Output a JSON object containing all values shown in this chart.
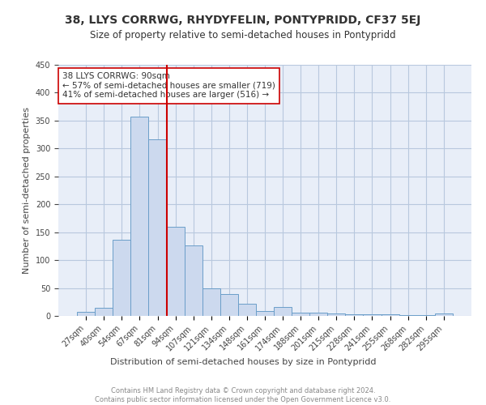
{
  "title": "38, LLYS CORRWG, RHYDYFELIN, PONTYPRIDD, CF37 5EJ",
  "subtitle": "Size of property relative to semi-detached houses in Pontypridd",
  "xlabel": "Distribution of semi-detached houses by size in Pontypridd",
  "ylabel": "Number of semi-detached properties",
  "footer_line1": "Contains HM Land Registry data © Crown copyright and database right 2024.",
  "footer_line2": "Contains public sector information licensed under the Open Government Licence v3.0.",
  "annotation_title": "38 LLYS CORRWG: 90sqm",
  "annotation_line1": "← 57% of semi-detached houses are smaller (719)",
  "annotation_line2": "41% of semi-detached houses are larger (516) →",
  "bar_color": "#ccd9ee",
  "bar_edge_color": "#6b9ec9",
  "vline_color": "#cc0000",
  "annotation_box_edge_color": "#cc0000",
  "background_color": "#ffffff",
  "plot_bg_color": "#e8eef8",
  "grid_color": "#b8c8de",
  "categories": [
    "27sqm",
    "40sqm",
    "54sqm",
    "67sqm",
    "81sqm",
    "94sqm",
    "107sqm",
    "121sqm",
    "134sqm",
    "148sqm",
    "161sqm",
    "174sqm",
    "188sqm",
    "201sqm",
    "215sqm",
    "228sqm",
    "241sqm",
    "255sqm",
    "268sqm",
    "282sqm",
    "295sqm"
  ],
  "values": [
    7,
    14,
    136,
    357,
    317,
    159,
    127,
    50,
    39,
    22,
    9,
    16,
    6,
    6,
    5,
    3,
    3,
    3,
    1,
    1,
    4
  ],
  "ylim": [
    0,
    450
  ],
  "vline_x_index": 4.5,
  "title_fontsize": 10,
  "subtitle_fontsize": 8.5,
  "ylabel_fontsize": 8,
  "xlabel_fontsize": 8,
  "tick_fontsize": 7,
  "annotation_fontsize": 7.5,
  "footer_fontsize": 6
}
